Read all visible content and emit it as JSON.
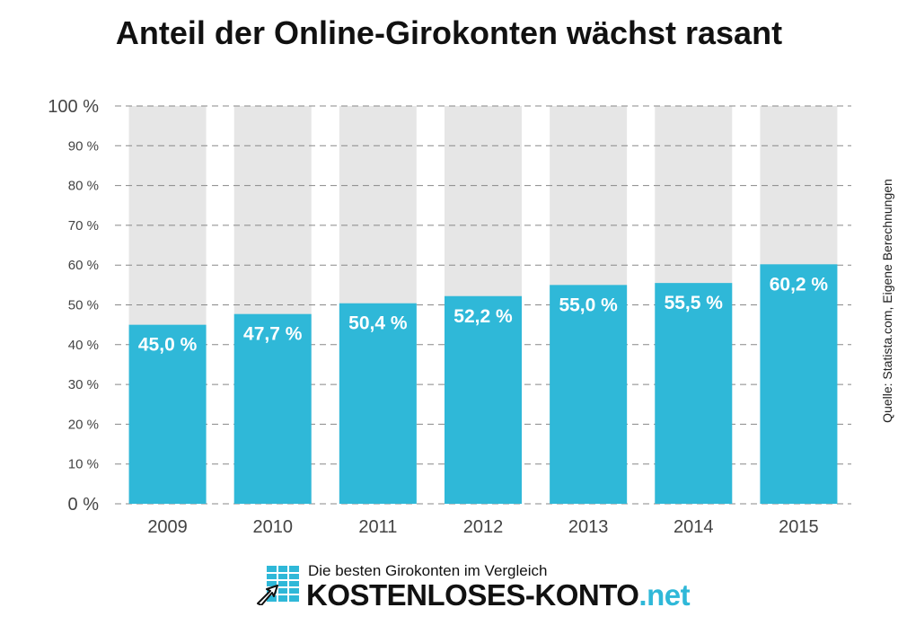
{
  "colors": {
    "bar": "#2fb8d8",
    "background_bar": "#e6e6e6",
    "grid": "#888888",
    "tld": "#2fb8d8"
  },
  "chart_data": {
    "type": "bar",
    "title": "Anteil der Online-Girokonten wächst rasant",
    "categories": [
      "2009",
      "2010",
      "2011",
      "2012",
      "2013",
      "2014",
      "2015"
    ],
    "values": [
      45.0,
      47.7,
      50.4,
      52.2,
      55.0,
      55.5,
      60.2
    ],
    "data_labels": [
      "45,0 %",
      "47,7 %",
      "50,4 %",
      "52,2 %",
      "55,0 %",
      "55,5 %",
      "60,2 %"
    ],
    "ylim": [
      0,
      100
    ],
    "yticks": [
      0,
      10,
      20,
      30,
      40,
      50,
      60,
      70,
      80,
      90,
      100
    ],
    "ytick_labels": [
      "0 %",
      "10 %",
      "20 %",
      "30 %",
      "40 %",
      "50 %",
      "60 %",
      "70 %",
      "80 %",
      "90 %",
      "100 %"
    ],
    "grid": true,
    "legend": false
  },
  "source": "Quelle: Statista.com, Eigene Berechnungen",
  "footer": {
    "tagline": "Die besten Girokonten im Vergleich",
    "brand": "KOSTENLOSES-KONTO",
    "tld": ".net",
    "logo_icon": "table-pointer-icon"
  }
}
